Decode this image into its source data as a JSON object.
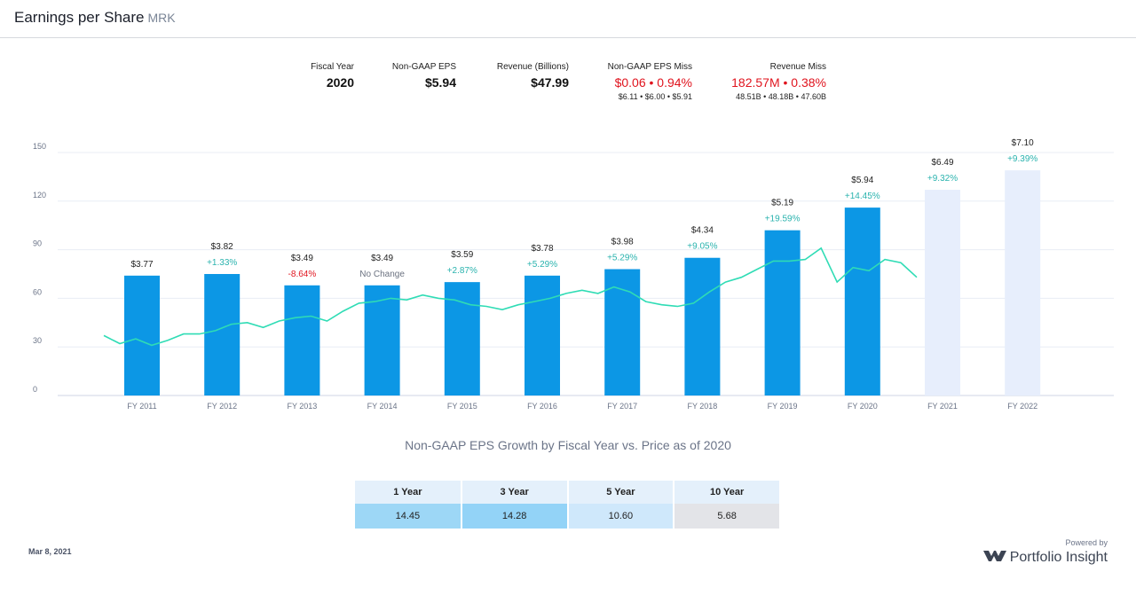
{
  "header": {
    "title": "Earnings per Share",
    "ticker": "MRK"
  },
  "summary": [
    {
      "label": "Fiscal Year",
      "value": "2020"
    },
    {
      "label": "Non-GAAP EPS",
      "value": "$5.94"
    },
    {
      "label": "Revenue (Billions)",
      "value": "$47.99"
    },
    {
      "label": "Non-GAAP EPS Miss",
      "value": "$0.06 • 0.94%",
      "detail": "$6.11 • $6.00 • $5.91"
    },
    {
      "label": "Revenue Miss",
      "value": "182.57M  • 0.38%",
      "detail": "48.51B • 48.18B • 47.60B"
    }
  ],
  "chart_data": {
    "type": "bar",
    "categories": [
      "FY 2011",
      "FY 2012",
      "FY 2013",
      "FY 2014",
      "FY 2015",
      "FY 2016",
      "FY 2017",
      "FY 2018",
      "FY 2019",
      "FY 2020",
      "FY 2021",
      "FY 2022"
    ],
    "values": [
      74,
      75,
      68,
      68,
      70,
      74,
      78,
      85,
      102,
      116,
      127,
      139
    ],
    "eps_labels": [
      "$3.77",
      "$3.82",
      "$3.49",
      "$3.49",
      "$3.59",
      "$3.78",
      "$3.98",
      "$4.34",
      "$5.19",
      "$5.94",
      "$6.49",
      "$7.10"
    ],
    "growth_labels": [
      null,
      "+1.33%",
      "-8.64%",
      "No Change",
      "+2.87%",
      "+5.29%",
      "+5.29%",
      "+9.05%",
      "+19.59%",
      "+14.45%",
      "+9.32%",
      "+9.39%"
    ],
    "growth_colors": [
      null,
      "#2ab3ae",
      "#e0141e",
      "#6b7280",
      "#2ab3ae",
      "#2ab3ae",
      "#2ab3ae",
      "#2ab3ae",
      "#2ab3ae",
      "#2ab3ae",
      "#2ab3ae",
      "#2ab3ae"
    ],
    "bar_colors": [
      "#0c97e5",
      "#0c97e5",
      "#0c97e5",
      "#0c97e5",
      "#0c97e5",
      "#0c97e5",
      "#0c97e5",
      "#0c97e5",
      "#0c97e5",
      "#0c97e5",
      "#e7eefc",
      "#e7eefc"
    ],
    "price": {
      "color": "#2fdcb5",
      "values": [
        37,
        32,
        35,
        31,
        34,
        38,
        38,
        40,
        44,
        45,
        42,
        46,
        48,
        49,
        46,
        52,
        57,
        58,
        60,
        59,
        62,
        60,
        59,
        56,
        55,
        53,
        56,
        58,
        60,
        63,
        65,
        63,
        67,
        64,
        58,
        56,
        55,
        57,
        64,
        70,
        73,
        78,
        83,
        83,
        84,
        91,
        70,
        79,
        77,
        84,
        82,
        73
      ]
    },
    "ylim": [
      0,
      150
    ],
    "yticks": [
      0,
      30,
      60,
      90,
      120,
      150
    ],
    "grid": true,
    "subtitle": "Non-GAAP EPS Growth by Fiscal Year vs. Price as of 2020"
  },
  "table": {
    "headers": [
      "1 Year",
      "3 Year",
      "5 Year",
      "10 Year"
    ],
    "rows": [
      [
        "14.45",
        "14.28",
        "10.60",
        "5.68"
      ]
    ],
    "cell_colors": [
      "#9dd7f6",
      "#93d3f7",
      "#cfe8fb",
      "#e3e4e8"
    ]
  },
  "footer": {
    "date": "Mar 8, 2021",
    "powered": "Powered by",
    "brand": "Portfolio Insight"
  }
}
